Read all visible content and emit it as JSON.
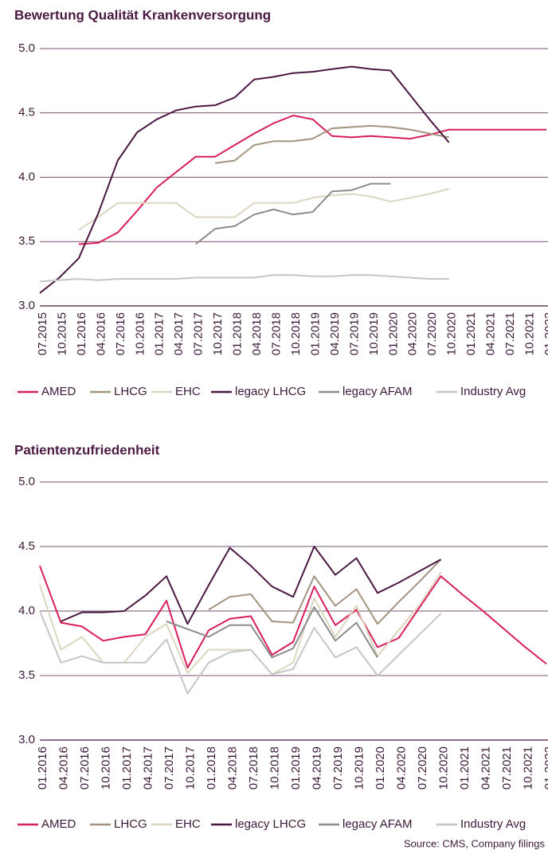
{
  "chart_data": [
    {
      "type": "line",
      "title": "Bewertung Qualität Krankenversorgung",
      "categories": [
        "07.2015",
        "10.2015",
        "01.2016",
        "04.2016",
        "07.2016",
        "10.2016",
        "01.2017",
        "04.2017",
        "07.2017",
        "10.2017",
        "01.2018",
        "04.2018",
        "07.2018",
        "10.2018",
        "01.2019",
        "04.2019",
        "07.2019",
        "10.2019",
        "01.2020",
        "04.2020",
        "07.2020",
        "10.2020",
        "01.2021",
        "04.2021",
        "07.2021",
        "10.2021",
        "01.2022"
      ],
      "ylim": [
        3,
        5
      ],
      "yticks": [
        {
          "value": 3,
          "label": "3.0"
        },
        3.5,
        {
          "value": 4,
          "label": "4.0"
        },
        4.5,
        {
          "value": 5,
          "label": "5.0"
        }
      ],
      "grid": true,
      "series": [
        {
          "name": "AMED",
          "color": "#d81e5b",
          "values": [
            null,
            null,
            3.48,
            3.49,
            3.57,
            3.74,
            3.92,
            4.04,
            4.16,
            4.16,
            4.25,
            4.34,
            4.42,
            4.48,
            4.45,
            4.32,
            4.31,
            4.32,
            4.31,
            4.3,
            4.33,
            4.37,
            4.37,
            4.37,
            4.37,
            4.37,
            4.37
          ]
        },
        {
          "name": "LHCG",
          "color": "#a39480",
          "values": [
            null,
            null,
            null,
            null,
            null,
            null,
            null,
            null,
            null,
            4.11,
            4.13,
            4.25,
            4.28,
            4.28,
            4.3,
            4.38,
            4.39,
            4.4,
            4.39,
            4.37,
            4.34,
            4.31,
            null,
            null,
            null,
            null,
            null
          ]
        },
        {
          "name": "EHC",
          "color": "#dcd6c0",
          "values": [
            null,
            null,
            3.59,
            3.69,
            3.8,
            3.8,
            3.8,
            3.8,
            3.69,
            3.69,
            3.69,
            3.8,
            3.8,
            3.8,
            3.84,
            3.86,
            3.87,
            3.85,
            3.81,
            3.84,
            3.87,
            3.91,
            null,
            null,
            null,
            null,
            null
          ]
        },
        {
          "name": "legacy LHCG",
          "color": "#4a1942",
          "values": [
            3.1,
            3.22,
            3.37,
            3.72,
            4.13,
            4.35,
            4.45,
            4.52,
            4.55,
            4.56,
            4.62,
            4.76,
            4.78,
            4.81,
            4.82,
            4.84,
            4.86,
            4.84,
            4.83,
            4.64,
            4.45,
            4.27,
            null,
            null,
            null,
            null,
            null
          ]
        },
        {
          "name": "legacy  AFAM",
          "color": "#8c8c8c",
          "values": [
            null,
            null,
            null,
            null,
            null,
            null,
            null,
            null,
            3.48,
            3.6,
            3.62,
            3.71,
            3.75,
            3.71,
            3.73,
            3.89,
            3.9,
            3.95,
            3.95,
            null,
            null,
            null,
            null,
            null,
            null,
            null,
            null
          ]
        },
        {
          "name": "Industry Avg",
          "color": "#c6c6c6",
          "values": [
            3.19,
            3.2,
            3.21,
            3.2,
            3.21,
            3.21,
            3.21,
            3.21,
            3.22,
            3.22,
            3.22,
            3.22,
            3.24,
            3.24,
            3.23,
            3.23,
            3.24,
            3.24,
            3.23,
            3.22,
            3.21,
            3.21,
            null,
            null,
            null,
            null,
            null
          ]
        }
      ]
    },
    {
      "type": "line",
      "title": "Patientenzufriedenheit",
      "categories": [
        "01.2016",
        "04.2016",
        "07.2016",
        "10.2016",
        "01.2017",
        "04.2017",
        "07.2017",
        "10.2017",
        "01.2018",
        "04.2018",
        "07.2018",
        "10.2018",
        "01.2019",
        "04.2019",
        "07.2019",
        "10.2019",
        "01.2020",
        "04.2020",
        "07.2020",
        "10.2020",
        "01.2021",
        "04.2021",
        "07.2021",
        "10.2021",
        "01.2022"
      ],
      "ylim": [
        3,
        5
      ],
      "yticks": [
        {
          "value": 3,
          "label": "3.0"
        },
        3.5,
        {
          "value": 4,
          "label": "4.0"
        },
        4.5,
        {
          "value": 5,
          "label": "5.0"
        }
      ],
      "grid": true,
      "series": [
        {
          "name": "AMED",
          "color": "#d81e5b",
          "values": [
            4.35,
            3.91,
            3.88,
            3.77,
            3.8,
            3.82,
            4.08,
            3.56,
            3.85,
            3.94,
            3.96,
            3.66,
            3.76,
            4.19,
            3.89,
            4.01,
            3.72,
            3.79,
            4.03,
            4.27,
            4.13,
            4.0,
            3.86,
            3.72,
            3.59
          ]
        },
        {
          "name": "LHCG",
          "color": "#a39480",
          "values": [
            null,
            null,
            null,
            null,
            null,
            null,
            null,
            null,
            4.01,
            4.11,
            4.13,
            3.92,
            3.91,
            4.27,
            4.04,
            4.17,
            3.9,
            4.07,
            4.23,
            4.4,
            null,
            null,
            null,
            null,
            null
          ]
        },
        {
          "name": "EHC",
          "color": "#dcd6c0",
          "values": [
            4.2,
            3.7,
            3.8,
            3.6,
            3.6,
            3.8,
            3.9,
            3.52,
            3.7,
            3.7,
            3.7,
            3.51,
            3.6,
            4.1,
            3.8,
            4.04,
            3.65,
            3.85,
            4.05,
            4.3,
            null,
            null,
            null,
            null,
            null
          ]
        },
        {
          "name": "legacy LHCG",
          "color": "#4a1942",
          "values": [
            null,
            3.92,
            3.99,
            3.99,
            4.0,
            4.12,
            4.27,
            3.9,
            4.2,
            4.49,
            4.35,
            4.19,
            4.11,
            4.5,
            4.28,
            4.41,
            4.14,
            4.22,
            4.31,
            4.4,
            null,
            null,
            null,
            null,
            null
          ]
        },
        {
          "name": "legacy  AFAM",
          "color": "#8c8c8c",
          "values": [
            null,
            null,
            null,
            null,
            null,
            null,
            3.92,
            3.86,
            3.8,
            3.89,
            3.89,
            3.64,
            3.71,
            4.03,
            3.77,
            3.91,
            3.64,
            null,
            null,
            null,
            null,
            null,
            null,
            null,
            null
          ]
        },
        {
          "name": "Industry Avg",
          "color": "#c6c6c6",
          "values": [
            4.0,
            3.6,
            3.65,
            3.6,
            3.6,
            3.6,
            3.78,
            3.36,
            3.6,
            3.68,
            3.7,
            3.51,
            3.55,
            3.87,
            3.64,
            3.72,
            3.5,
            3.66,
            3.82,
            3.98,
            null,
            null,
            null,
            null,
            null
          ]
        }
      ]
    }
  ],
  "source": "Source: CMS, Company filings"
}
